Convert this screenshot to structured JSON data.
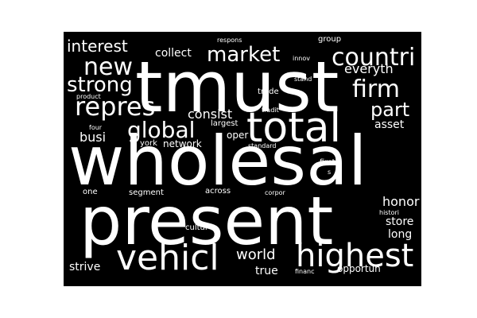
{
  "word_cloud": {
    "background": "#000000",
    "text_color": "#ffffff",
    "words": {
      "tmust": "tmust",
      "wholesal": "wholesal",
      "present": "present",
      "total": "total",
      "vehicl": "vehicl",
      "highest": "highest",
      "countri": "countri",
      "market": "market",
      "new": "new",
      "strong": "strong",
      "repres": "repres",
      "global": "global",
      "firm": "firm",
      "part": "part",
      "interest": "interest",
      "collect": "collect",
      "everyth": "everyth",
      "consist": "consist",
      "busi": "busi",
      "asset": "asset",
      "largest": "largest",
      "oper": "oper",
      "network": "network",
      "york": "york",
      "four": "four",
      "standard": "standard",
      "trade": "trade",
      "tradit": "tradit",
      "stand": "stand",
      "innov": "innov",
      "group": "group",
      "respons": "respons",
      "product": "product",
      "first": "first",
      "s": "s",
      "one": "one",
      "segment": "segment",
      "across": "across",
      "corpor": "corpor",
      "honor": "honor",
      "histori": "histori",
      "store": "store",
      "long": "long",
      "cultur": "cultur",
      "world": "world",
      "true": "true",
      "strive": "strive",
      "financ": "financ",
      "opportun": "opportun"
    }
  }
}
